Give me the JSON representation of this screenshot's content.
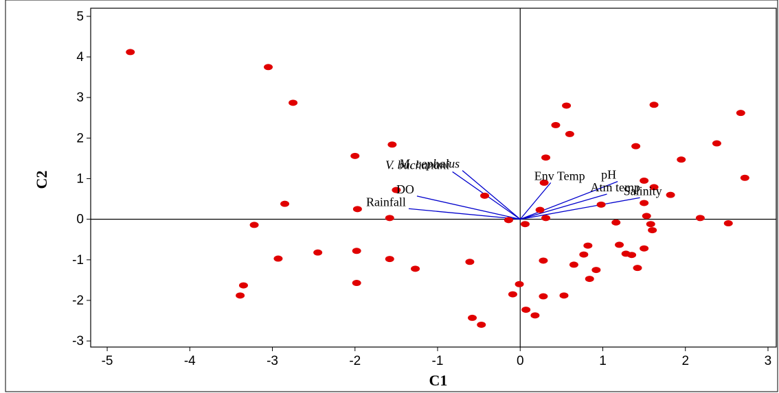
{
  "chart_data": {
    "type": "scatter",
    "title": "",
    "xlabel": "C1",
    "ylabel": "C2",
    "xlim": [
      -5.2,
      3.1
    ],
    "ylim": [
      -3.15,
      5.2
    ],
    "xticks": [
      -5,
      -4,
      -3,
      -2,
      -1,
      0,
      1,
      2,
      3
    ],
    "yticks": [
      -3,
      -2,
      -1,
      0,
      1,
      2,
      3,
      4,
      5
    ],
    "grid": false,
    "origin_lines": true,
    "colors": {
      "points": "#e00000",
      "vectors": "#0000cc",
      "axes": "#000000",
      "frame": "#000000"
    },
    "points": [
      [
        -4.72,
        4.12
      ],
      [
        -3.05,
        3.75
      ],
      [
        -2.75,
        2.87
      ],
      [
        -2.0,
        1.56
      ],
      [
        -1.55,
        1.84
      ],
      [
        -2.85,
        0.38
      ],
      [
        -1.97,
        0.25
      ],
      [
        -1.58,
        0.03
      ],
      [
        -3.22,
        -0.14
      ],
      [
        -2.93,
        -0.97
      ],
      [
        -2.45,
        -0.82
      ],
      [
        -1.98,
        -0.78
      ],
      [
        -1.58,
        -0.98
      ],
      [
        -1.27,
        -1.22
      ],
      [
        -1.98,
        -1.57
      ],
      [
        -3.35,
        -1.63
      ],
      [
        -3.39,
        -1.88
      ],
      [
        -0.61,
        -1.05
      ],
      [
        -0.58,
        -2.43
      ],
      [
        -0.47,
        -2.6
      ],
      [
        -0.43,
        0.58
      ],
      [
        -1.5,
        0.72
      ],
      [
        -0.14,
        -0.02
      ],
      [
        0.06,
        -0.12
      ],
      [
        -0.01,
        -1.6
      ],
      [
        -0.09,
        -1.85
      ],
      [
        0.07,
        -2.23
      ],
      [
        0.18,
        -2.37
      ],
      [
        0.28,
        -1.02
      ],
      [
        0.28,
        -1.9
      ],
      [
        0.53,
        -1.88
      ],
      [
        0.24,
        0.23
      ],
      [
        0.29,
        0.9
      ],
      [
        0.31,
        0.03
      ],
      [
        0.31,
        1.52
      ],
      [
        0.43,
        2.32
      ],
      [
        0.56,
        2.8
      ],
      [
        0.6,
        2.1
      ],
      [
        0.65,
        -1.12
      ],
      [
        0.77,
        -0.87
      ],
      [
        0.82,
        -0.65
      ],
      [
        0.84,
        -1.47
      ],
      [
        0.92,
        -1.25
      ],
      [
        0.98,
        0.36
      ],
      [
        1.16,
        -0.08
      ],
      [
        1.2,
        -0.63
      ],
      [
        1.28,
        -0.85
      ],
      [
        1.35,
        -0.88
      ],
      [
        1.42,
        -1.2
      ],
      [
        1.4,
        1.8
      ],
      [
        1.62,
        2.82
      ],
      [
        1.5,
        0.95
      ],
      [
        1.5,
        -0.72
      ],
      [
        1.53,
        0.08
      ],
      [
        1.58,
        -0.12
      ],
      [
        1.6,
        -0.27
      ],
      [
        1.62,
        0.79
      ],
      [
        1.82,
        0.6
      ],
      [
        1.5,
        0.4
      ],
      [
        1.95,
        1.47
      ],
      [
        2.18,
        0.03
      ],
      [
        2.38,
        1.87
      ],
      [
        2.52,
        -0.1
      ],
      [
        2.67,
        2.62
      ],
      [
        2.72,
        1.02
      ]
    ],
    "vectors": [
      {
        "label": "M. cephalus",
        "italic": true,
        "end": [
          -0.7,
          1.2
        ]
      },
      {
        "label": "V. buchanani",
        "italic": true,
        "end": [
          -0.82,
          1.17
        ]
      },
      {
        "label": "DO",
        "italic": false,
        "end": [
          -1.25,
          0.57
        ]
      },
      {
        "label": "Rainfall",
        "italic": false,
        "end": [
          -1.35,
          0.26
        ]
      },
      {
        "label": "Env Temp",
        "italic": false,
        "end": [
          0.37,
          0.9
        ]
      },
      {
        "label": "pH",
        "italic": false,
        "end": [
          1.18,
          0.93
        ]
      },
      {
        "label": "Atm temp",
        "italic": false,
        "end": [
          1.05,
          0.62
        ]
      },
      {
        "label": "Salinity",
        "italic": false,
        "end": [
          1.45,
          0.53
        ]
      }
    ]
  }
}
